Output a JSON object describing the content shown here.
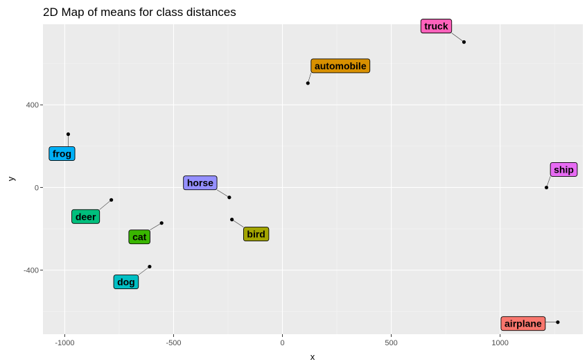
{
  "chart_data": {
    "type": "scatter",
    "title": "2D Map of means for class distances",
    "xlabel": "x",
    "ylabel": "y",
    "xlim": [
      -1100,
      1380
    ],
    "ylim": [
      -710,
      790
    ],
    "xticks": [
      -1000,
      -500,
      0,
      500,
      1000
    ],
    "xtick_labels": [
      "-1000",
      "-500",
      "0",
      "500",
      "1000"
    ],
    "yticks": [
      400,
      0,
      -400
    ],
    "ytick_labels": [
      "400",
      "0",
      "-400"
    ],
    "grid": true,
    "legend": "none",
    "points": [
      {
        "label": "airplane",
        "x": 1265,
        "y": -652,
        "color": "#F8766D"
      },
      {
        "label": "automobile",
        "x": 117,
        "y": 505,
        "color": "#D89000"
      },
      {
        "label": "bird",
        "x": -232,
        "y": -155,
        "color": "#A3A500"
      },
      {
        "label": "cat",
        "x": -555,
        "y": -172,
        "color": "#39B600"
      },
      {
        "label": "deer",
        "x": -786,
        "y": -60,
        "color": "#00BF7D"
      },
      {
        "label": "dog",
        "x": -610,
        "y": -383,
        "color": "#00BFC4"
      },
      {
        "label": "frog",
        "x": -984,
        "y": 258,
        "color": "#00B0F6"
      },
      {
        "label": "horse",
        "x": -244,
        "y": -48,
        "color": "#9590FF"
      },
      {
        "label": "ship",
        "x": 1213,
        "y": 0,
        "color": "#E76BF3"
      },
      {
        "label": "truck",
        "x": 834,
        "y": 704,
        "color": "#FF62BC"
      }
    ]
  }
}
